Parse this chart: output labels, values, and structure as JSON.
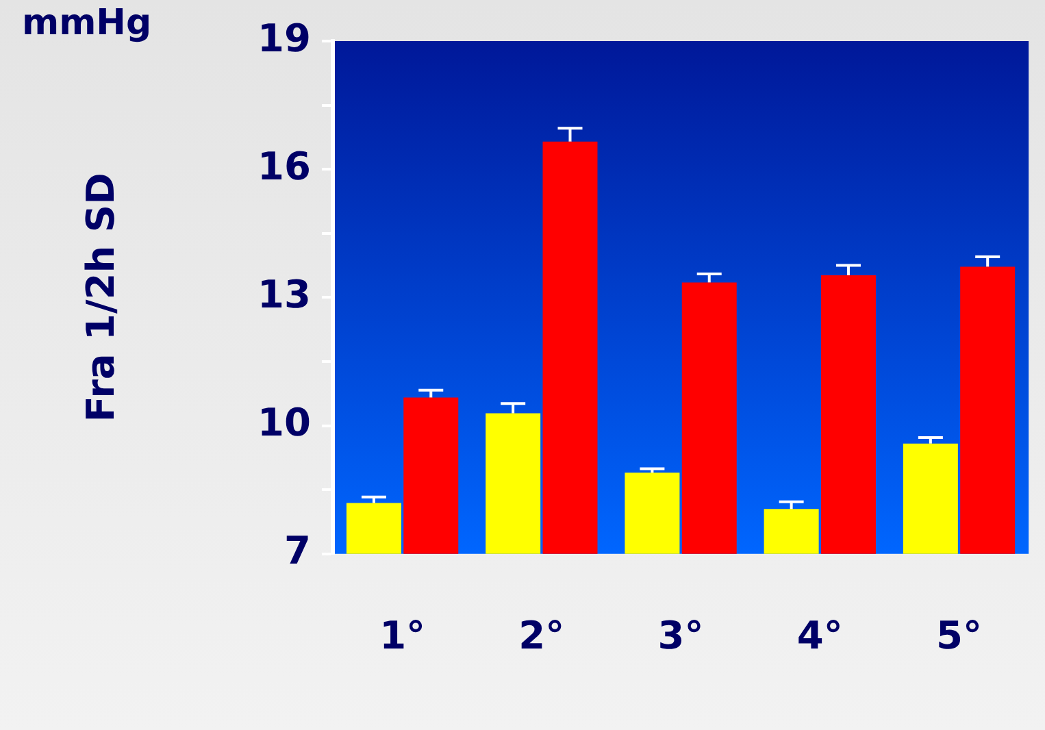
{
  "chart_data": {
    "type": "bar",
    "ylabel": "Fra 1/2h SD",
    "annotations": [
      "mmHg"
    ],
    "categories": [
      "1°",
      "2°",
      "3°",
      "4°",
      "5°"
    ],
    "series": [
      {
        "color": "#ffff00",
        "values": [
          8.19,
          10.29,
          8.9,
          8.05,
          9.58
        ],
        "errors": [
          0.14,
          0.23,
          0.09,
          0.17,
          0.14
        ]
      },
      {
        "color": "#ff0000",
        "values": [
          10.66,
          16.65,
          13.35,
          13.52,
          13.72
        ],
        "errors": [
          0.17,
          0.31,
          0.2,
          0.23,
          0.23
        ]
      }
    ],
    "ylim": [
      7,
      19
    ],
    "yticks": [
      7,
      {
        "value": 8.5,
        "label": null
      },
      10,
      {
        "value": 11.5,
        "label": null
      },
      13,
      {
        "value": 14.5,
        "label": null
      },
      16,
      {
        "value": 17.5,
        "label": null
      },
      19
    ],
    "grid": false,
    "legend": false
  }
}
